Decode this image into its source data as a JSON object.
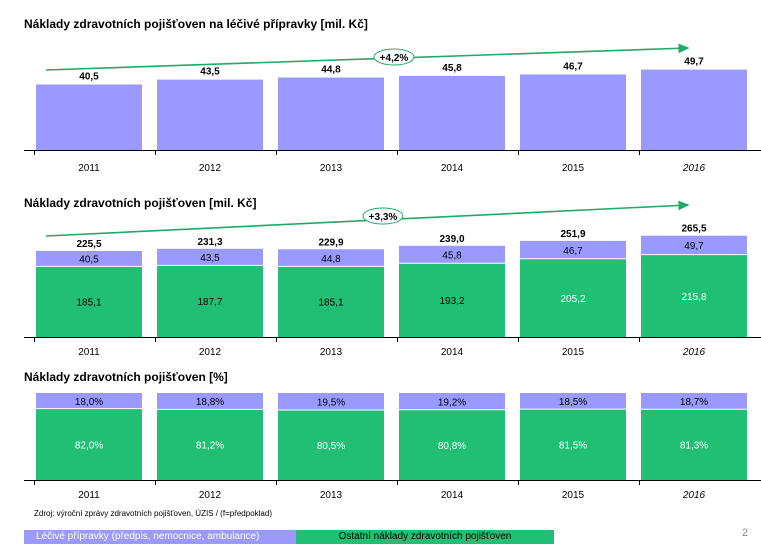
{
  "colors": {
    "drugs": "#9999ff",
    "other": "#21bf73",
    "arrow": "#1faa6a",
    "axis": "#000000"
  },
  "chart_data": [
    {
      "type": "bar",
      "title": "Náklady zdravotních pojišťoven na léčivé přípravky [mil. Kč]",
      "categories": [
        "2011",
        "2012",
        "2013",
        "2014",
        "2015",
        "2016"
      ],
      "forecast_categories": [
        "2016"
      ],
      "values": [
        40.5,
        43.5,
        44.8,
        45.8,
        46.7,
        49.7
      ],
      "labels": [
        "40,5",
        "43,5",
        "44,8",
        "45,8",
        "46,7",
        "49,7"
      ],
      "ylim": [
        0,
        68
      ],
      "annotation": "+4,2%"
    },
    {
      "type": "bar",
      "stacked": true,
      "title": "Náklady zdravotních pojišťoven [mil. Kč]",
      "categories": [
        "2011",
        "2012",
        "2013",
        "2014",
        "2015",
        "2016"
      ],
      "forecast_categories": [
        "2016"
      ],
      "series": [
        {
          "values": [
            185.1,
            187.7,
            185.1,
            193.2,
            205.2,
            215.8
          ],
          "labels": [
            "185,1",
            "187,7",
            "185,1",
            "193,2",
            "205,2",
            "215,8"
          ]
        },
        {
          "values": [
            40.5,
            43.5,
            44.8,
            45.8,
            46.7,
            49.7
          ],
          "labels": [
            "40,5",
            "43,5",
            "44,8",
            "45,8",
            "46,7",
            "49,7"
          ]
        }
      ],
      "totals": [
        225.5,
        231.3,
        229.9,
        239.0,
        251.9,
        265.5
      ],
      "total_labels": [
        "225,5",
        "231,3",
        "229,9",
        "239,0",
        "251,9",
        "265,5"
      ],
      "ylim": [
        0,
        304
      ],
      "annotation": "+3,3%"
    },
    {
      "type": "bar",
      "stacked": true,
      "title": "Náklady zdravotních pojišťoven [%]",
      "categories": [
        "2011",
        "2012",
        "2013",
        "2014",
        "2015",
        "2016"
      ],
      "forecast_categories": [
        "2016"
      ],
      "series": [
        {
          "values": [
            82.0,
            81.2,
            80.5,
            80.8,
            81.5,
            81.3
          ],
          "labels": [
            "82,0%",
            "81,2%",
            "80,5%",
            "80,8%",
            "81,5%",
            "81,3%"
          ]
        },
        {
          "values": [
            18.0,
            18.8,
            19.5,
            19.2,
            18.5,
            18.7
          ],
          "labels": [
            "18,0%",
            "18,8%",
            "19,5%",
            "19,2%",
            "18,5%",
            "18,7%"
          ]
        }
      ],
      "ylim": [
        0,
        100
      ]
    }
  ],
  "legend": [
    {
      "label": "Léčivé přípravky (předpis, nemocnice, ambulance)"
    },
    {
      "label": "Ostatní náklady zdravotních pojišťoven"
    }
  ],
  "source": "Zdroj: výroční zprávy zdravotních pojišťoven, ÚZIS / (f=předpoklad)",
  "page_number": "2"
}
